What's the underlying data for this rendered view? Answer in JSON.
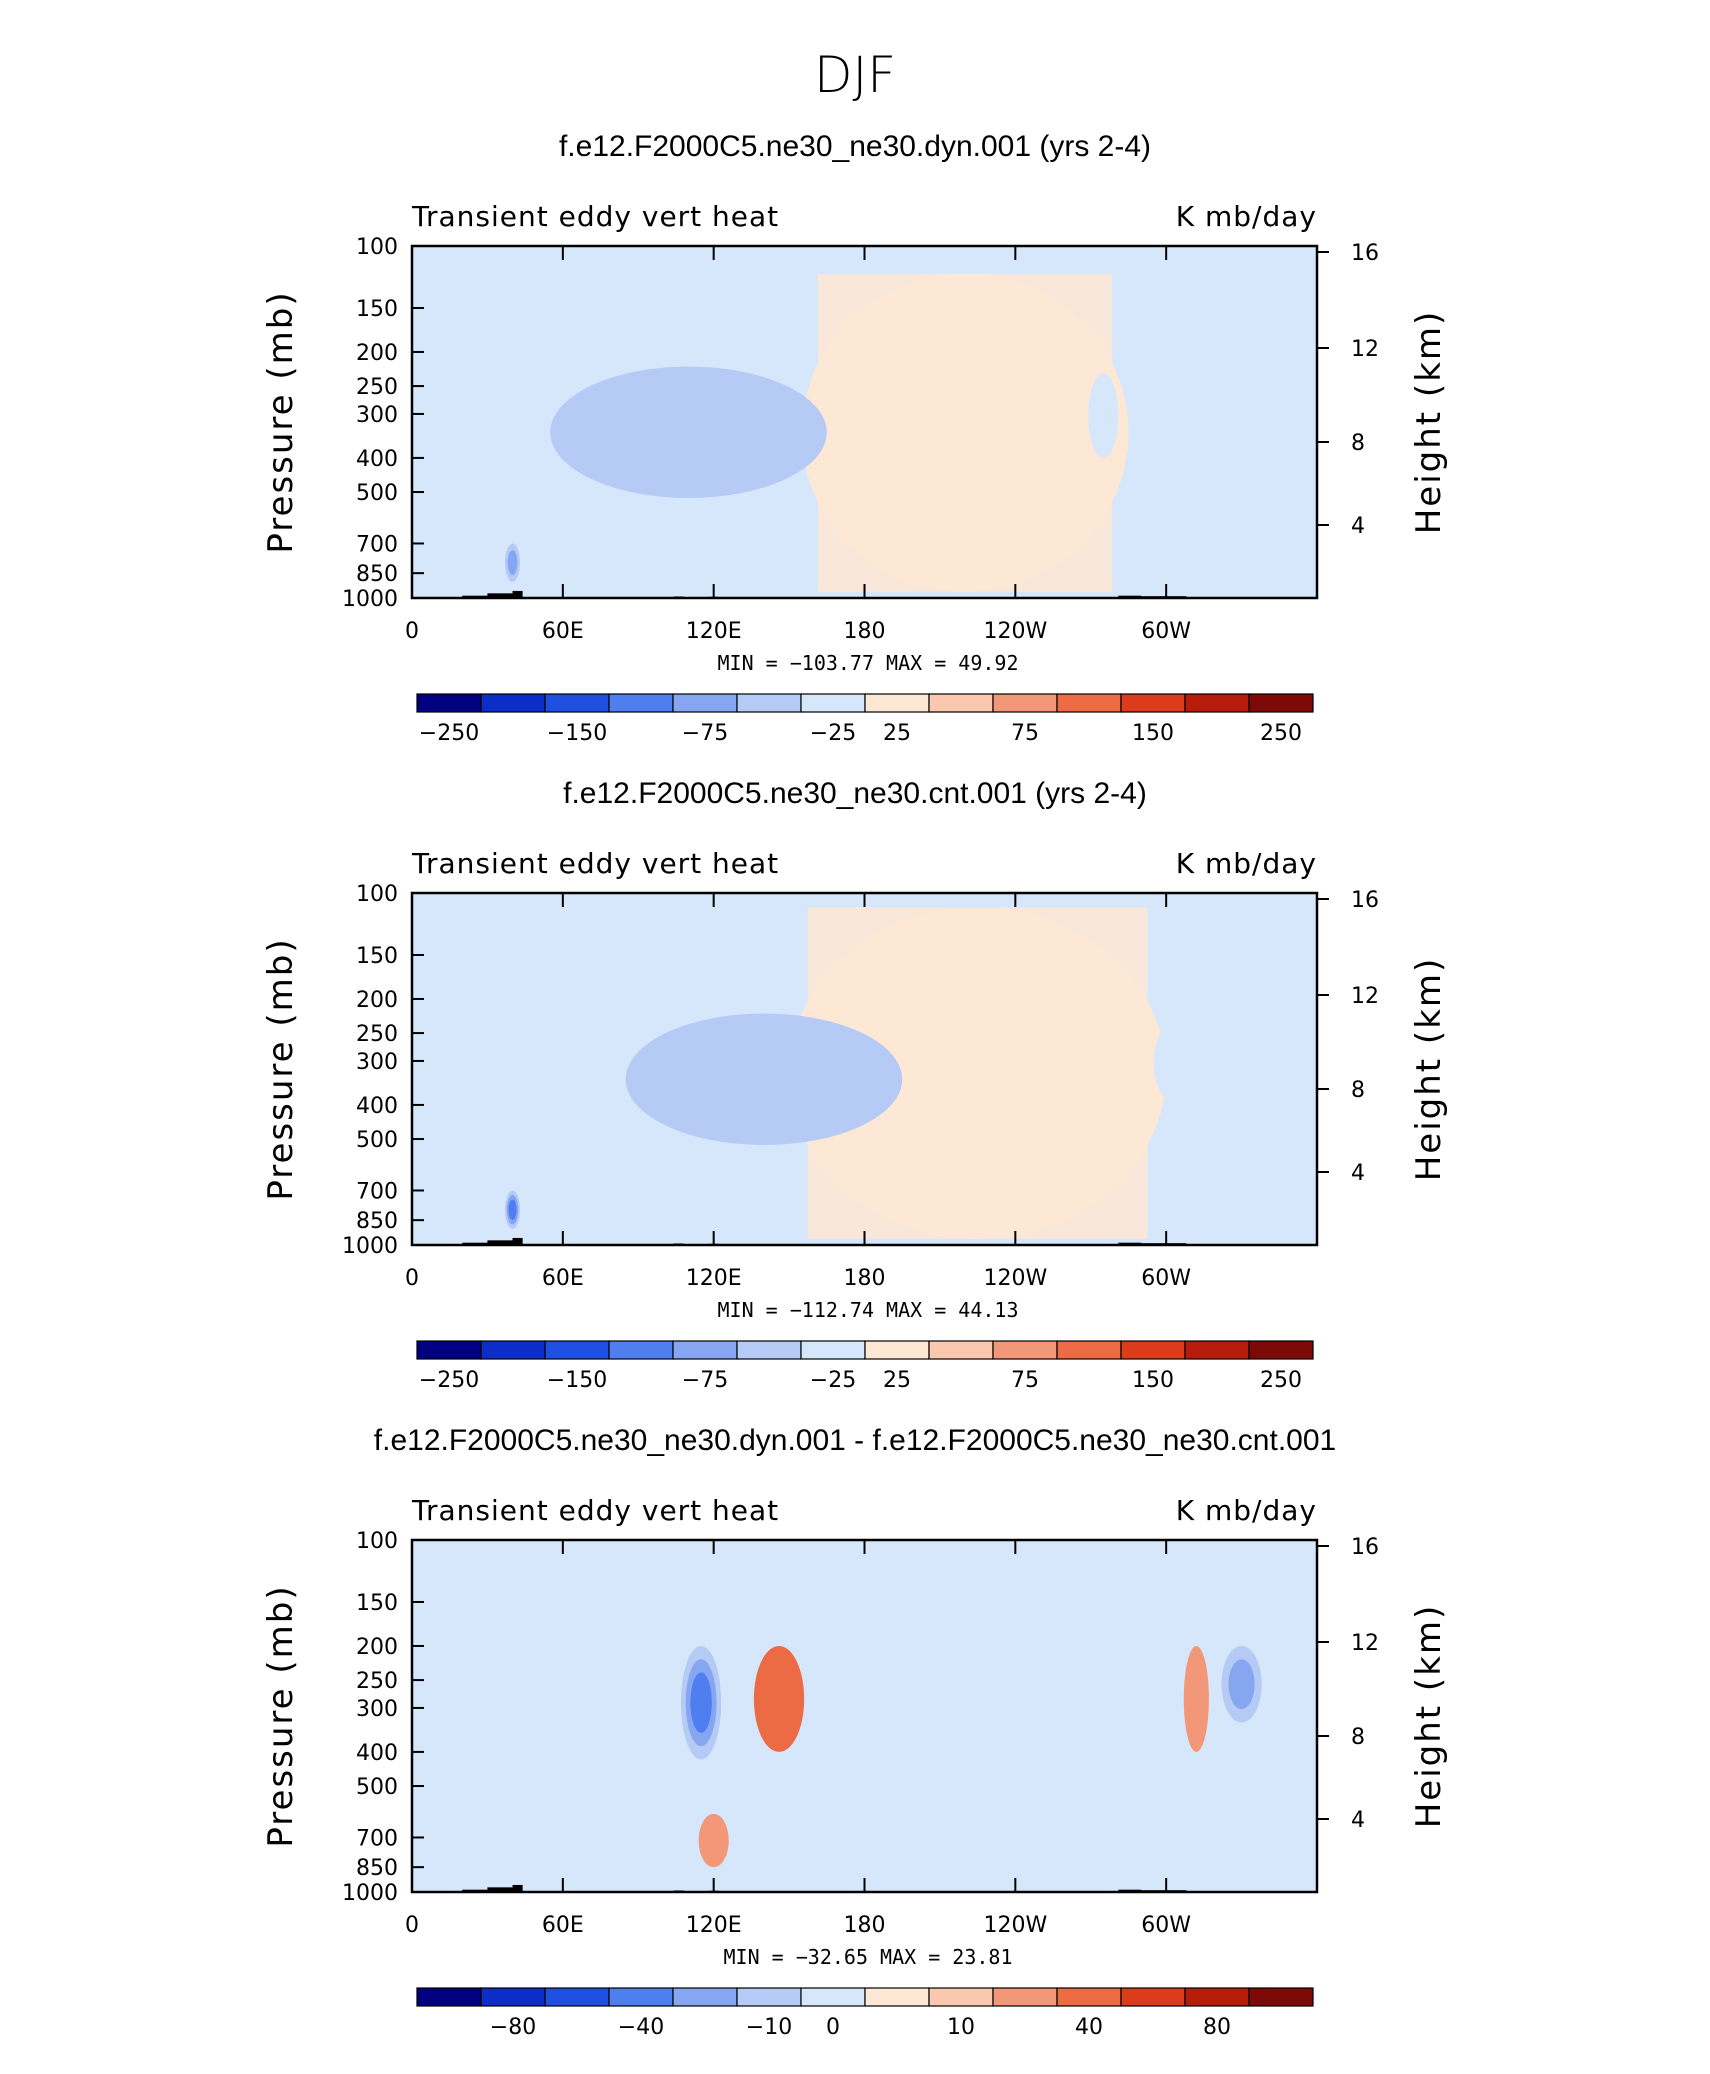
{
  "figure_title": "DJF",
  "colormap": [
    "#000080",
    "#0d2dc8",
    "#1f4fe0",
    "#4f7ef0",
    "#86a6f2",
    "#b5cbf6",
    "#d7e7fb",
    "#fde8d6",
    "#fac8ae",
    "#f29879",
    "#ec6b45",
    "#dc3c1b",
    "#b71c0a",
    "#7e0a08"
  ],
  "terrain_color": "#000000",
  "panels": [
    {
      "title": "f.e12.F2000C5.ne30_ne30.dyn.001 (yrs 2-4)",
      "left_label": "Transient eddy vert heat",
      "right_label": "K mb/day",
      "min_max": "MIN = −103.77   MAX =   49.92",
      "colorbar_labels": [
        "−250",
        "−150",
        "−75",
        "−25",
        "25",
        "75",
        "150",
        "250"
      ]
    },
    {
      "title": "f.e12.F2000C5.ne30_ne30.cnt.001 (yrs 2-4)",
      "left_label": "Transient eddy vert heat",
      "right_label": "K mb/day",
      "min_max": "MIN = −112.74   MAX =   44.13",
      "colorbar_labels": [
        "−250",
        "−150",
        "−75",
        "−25",
        "25",
        "75",
        "150",
        "250"
      ]
    },
    {
      "title": "f.e12.F2000C5.ne30_ne30.dyn.001 - f.e12.F2000C5.ne30_ne30.cnt.001",
      "left_label": "Transient eddy vert heat",
      "right_label": "K mb/day",
      "min_max": "MIN = −32.65   MAX =   23.81",
      "colorbar_labels": [
        "−80",
        "−40",
        "−10",
        "0",
        "10",
        "40",
        "80"
      ]
    }
  ],
  "chart_data": [
    {
      "type": "heatmap",
      "title": "f.e12.F2000C5.ne30_ne30.dyn.001 (yrs 2-4)",
      "xlabel": "",
      "ylabel": "Pressure (mb)",
      "y2label": "Height (km)",
      "units": "K mb/day",
      "x_ticks": [
        "0",
        "60E",
        "120E",
        "180",
        "120W",
        "60W"
      ],
      "xlim": [
        0,
        360
      ],
      "y_ticks": [
        100,
        150,
        200,
        250,
        300,
        400,
        500,
        700,
        850,
        1000
      ],
      "ylim": [
        1000,
        100
      ],
      "y_scale": "log",
      "y2_ticks": [
        4,
        8,
        12,
        16
      ],
      "colorbar_levels": [
        -250,
        -150,
        -75,
        -25,
        25,
        75,
        150,
        250
      ],
      "min": -103.77,
      "max": 49.92,
      "features": [
        {
          "lon": 88,
          "p": 290,
          "lon_width": 55,
          "p_span": [
            200,
            500
          ],
          "value": -45
        },
        {
          "lon": 110,
          "p": 300,
          "lon_width": 55,
          "p_span": [
            220,
            520
          ],
          "value": -70
        },
        {
          "lon": 40,
          "p": 820,
          "lon_width": 3,
          "p_span": [
            700,
            900
          ],
          "value": -100
        },
        {
          "lon": 275,
          "p": 300,
          "lon_width": 6,
          "p_span": [
            230,
            400
          ],
          "value": -30
        },
        {
          "lon": 220,
          "p": 400,
          "lon_width": 65,
          "p_span": [
            120,
            960
          ],
          "value": 15
        }
      ]
    },
    {
      "type": "heatmap",
      "title": "f.e12.F2000C5.ne30_ne30.cnt.001 (yrs 2-4)",
      "xlabel": "",
      "ylabel": "Pressure (mb)",
      "y2label": "Height (km)",
      "units": "K mb/day",
      "x_ticks": [
        "0",
        "60E",
        "120E",
        "180",
        "120W",
        "60W"
      ],
      "xlim": [
        0,
        360
      ],
      "y_ticks": [
        100,
        150,
        200,
        250,
        300,
        400,
        500,
        700,
        850,
        1000
      ],
      "ylim": [
        1000,
        100
      ],
      "y_scale": "log",
      "y2_ticks": [
        4,
        8,
        12,
        16
      ],
      "colorbar_levels": [
        -250,
        -150,
        -75,
        -25,
        25,
        75,
        150,
        250
      ],
      "min": -112.74,
      "max": 44.13,
      "features": [
        {
          "lon": 95,
          "p": 290,
          "lon_width": 50,
          "p_span": [
            200,
            500
          ],
          "value": -50
        },
        {
          "lon": 140,
          "p": 300,
          "lon_width": 55,
          "p_span": [
            220,
            520
          ],
          "value": -60
        },
        {
          "lon": 40,
          "p": 820,
          "lon_width": 3,
          "p_span": [
            700,
            900
          ],
          "value": -110
        },
        {
          "lon": 305,
          "p": 300,
          "lon_width": 10,
          "p_span": [
            230,
            400
          ],
          "value": -35
        },
        {
          "lon": 225,
          "p": 400,
          "lon_width": 75,
          "p_span": [
            110,
            960
          ],
          "value": 15
        }
      ]
    },
    {
      "type": "heatmap",
      "title": "f.e12.F2000C5.ne30_ne30.dyn.001 - f.e12.F2000C5.ne30_ne30.cnt.001",
      "xlabel": "",
      "ylabel": "Pressure (mb)",
      "y2label": "Height (km)",
      "units": "K mb/day",
      "x_ticks": [
        "0",
        "60E",
        "120E",
        "180",
        "120W",
        "60W"
      ],
      "xlim": [
        0,
        360
      ],
      "y_ticks": [
        100,
        150,
        200,
        250,
        300,
        400,
        500,
        700,
        850,
        1000
      ],
      "ylim": [
        1000,
        100
      ],
      "y_scale": "log",
      "y2_ticks": [
        4,
        8,
        12,
        16
      ],
      "colorbar_levels": [
        -80,
        -40,
        -10,
        0,
        10,
        40,
        80
      ],
      "min": -32.65,
      "max": 23.81,
      "features": [
        {
          "lon": 115,
          "p": 290,
          "lon_width": 8,
          "p_span": [
            200,
            420
          ],
          "value": -30
        },
        {
          "lon": 146,
          "p": 270,
          "lon_width": 10,
          "p_span": [
            200,
            400
          ],
          "value": 20
        },
        {
          "lon": 312,
          "p": 280,
          "lon_width": 5,
          "p_span": [
            200,
            400
          ],
          "value": 18
        },
        {
          "lon": 330,
          "p": 260,
          "lon_width": 8,
          "p_span": [
            200,
            330
          ],
          "value": -15
        },
        {
          "lon": 120,
          "p": 700,
          "lon_width": 6,
          "p_span": [
            600,
            850
          ],
          "value": 12
        }
      ]
    }
  ]
}
